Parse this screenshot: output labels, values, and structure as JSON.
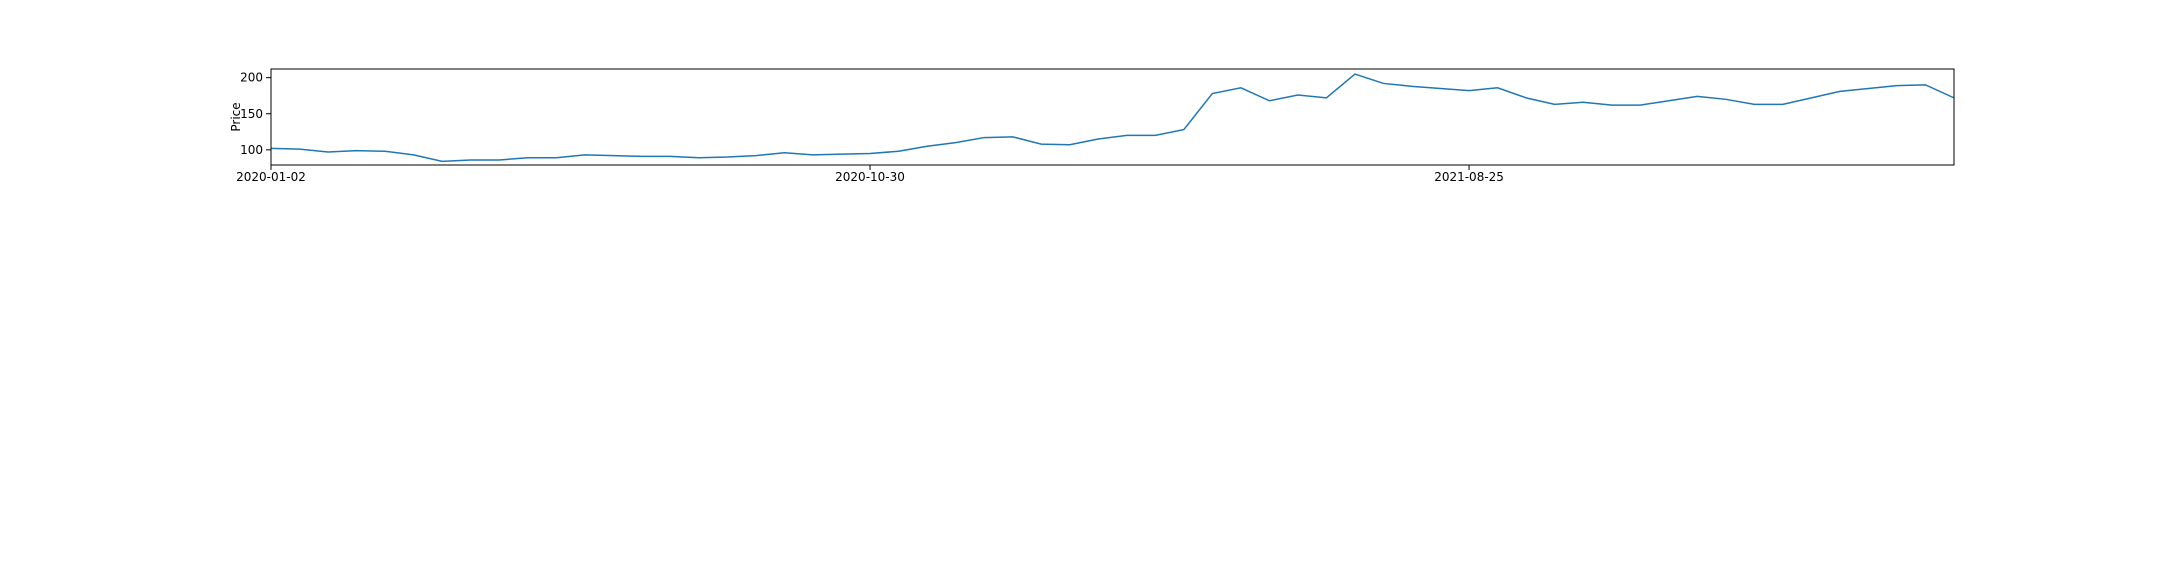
{
  "chart_data": {
    "type": "line",
    "y_label": "Price",
    "color": "#1f77b4",
    "categories": [
      "2020-01-02",
      null,
      null,
      null,
      null,
      null,
      null,
      null,
      null,
      null,
      null,
      null,
      null,
      null,
      null,
      null,
      null,
      null,
      null,
      null,
      null,
      "2020-10-30",
      null,
      null,
      null,
      null,
      null,
      null,
      null,
      null,
      null,
      null,
      null,
      null,
      null,
      null,
      null,
      null,
      null,
      null,
      null,
      null,
      "2021-08-25",
      null,
      null,
      null,
      null,
      null,
      null,
      null,
      null,
      null,
      null,
      null,
      null,
      null,
      null,
      null,
      null,
      null
    ],
    "values": [
      102,
      101,
      97,
      99,
      98,
      93,
      84,
      86,
      86,
      89,
      89,
      93,
      92,
      91,
      91,
      89,
      90,
      92,
      96,
      93,
      94,
      95,
      98,
      105,
      110,
      117,
      118,
      108,
      107,
      115,
      120,
      120,
      128,
      178,
      186,
      168,
      176,
      172,
      205,
      192,
      188,
      185,
      182,
      186,
      172,
      163,
      166,
      162,
      162,
      168,
      174,
      170,
      163,
      163,
      172,
      181,
      185,
      189,
      190,
      172
    ],
    "ylim": [
      79,
      212
    ],
    "yticks": [
      100,
      150,
      200
    ]
  }
}
